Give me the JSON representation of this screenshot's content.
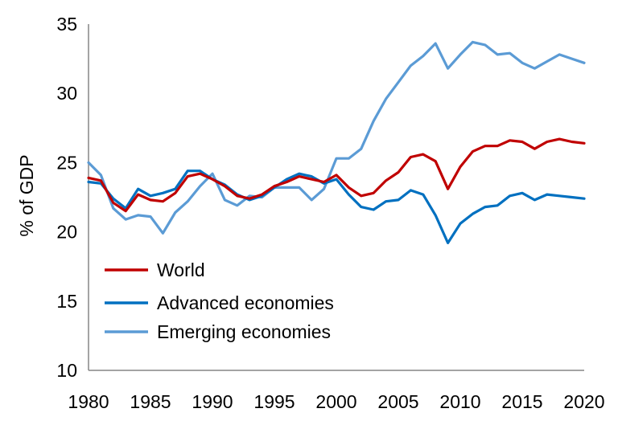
{
  "chart_data": {
    "type": "line",
    "title": "",
    "xlabel": "",
    "ylabel": "% of GDP",
    "xlim": [
      1980,
      2020
    ],
    "ylim": [
      10,
      35
    ],
    "x_ticks": [
      "1980",
      "1985",
      "1990",
      "1995",
      "2000",
      "2005",
      "2010",
      "2015",
      "2020"
    ],
    "y_ticks": [
      "10",
      "15",
      "20",
      "25",
      "30",
      "35"
    ],
    "grid": false,
    "legend_position": "bottom-left",
    "x": [
      1980,
      1981,
      1982,
      1983,
      1984,
      1985,
      1986,
      1987,
      1988,
      1989,
      1990,
      1991,
      1992,
      1993,
      1994,
      1995,
      1996,
      1997,
      1998,
      1999,
      2000,
      2001,
      2002,
      2003,
      2004,
      2005,
      2006,
      2007,
      2008,
      2009,
      2010,
      2011,
      2012,
      2013,
      2014,
      2015,
      2016,
      2017,
      2018,
      2019,
      2020
    ],
    "series": [
      {
        "name": "World",
        "color": "#C00000",
        "values": [
          23.9,
          23.7,
          22.1,
          21.5,
          22.7,
          22.3,
          22.2,
          22.8,
          24.0,
          24.2,
          23.8,
          23.3,
          22.6,
          22.4,
          22.7,
          23.3,
          23.6,
          24.0,
          23.8,
          23.6,
          24.1,
          23.2,
          22.6,
          22.8,
          23.7,
          24.3,
          25.4,
          25.6,
          25.1,
          23.1,
          24.7,
          25.8,
          26.2,
          26.2,
          26.6,
          26.5,
          26.0,
          26.5,
          26.7,
          26.5,
          26.4
        ]
      },
      {
        "name": "Advanced economies",
        "color": "#0070C0",
        "values": [
          23.6,
          23.5,
          22.4,
          21.7,
          23.1,
          22.6,
          22.8,
          23.1,
          24.4,
          24.4,
          23.8,
          23.4,
          22.7,
          22.3,
          22.6,
          23.2,
          23.8,
          24.2,
          24.0,
          23.5,
          23.8,
          22.7,
          21.8,
          21.6,
          22.2,
          22.3,
          23.0,
          22.7,
          21.2,
          19.2,
          20.6,
          21.3,
          21.8,
          21.9,
          22.6,
          22.8,
          22.3,
          22.7,
          22.6,
          22.5,
          22.4
        ]
      },
      {
        "name": "Emerging economies",
        "color": "#5B9BD5",
        "values": [
          25.0,
          24.1,
          21.7,
          20.9,
          21.2,
          21.1,
          19.9,
          21.4,
          22.2,
          23.3,
          24.2,
          22.3,
          21.9,
          22.6,
          22.5,
          23.2,
          23.2,
          23.2,
          22.3,
          23.1,
          25.3,
          25.3,
          26.0,
          28.0,
          29.6,
          30.8,
          32.0,
          32.7,
          33.6,
          31.8,
          32.8,
          33.7,
          33.5,
          32.8,
          32.9,
          32.2,
          31.8,
          32.3,
          32.8,
          32.5,
          32.2
        ]
      }
    ]
  }
}
